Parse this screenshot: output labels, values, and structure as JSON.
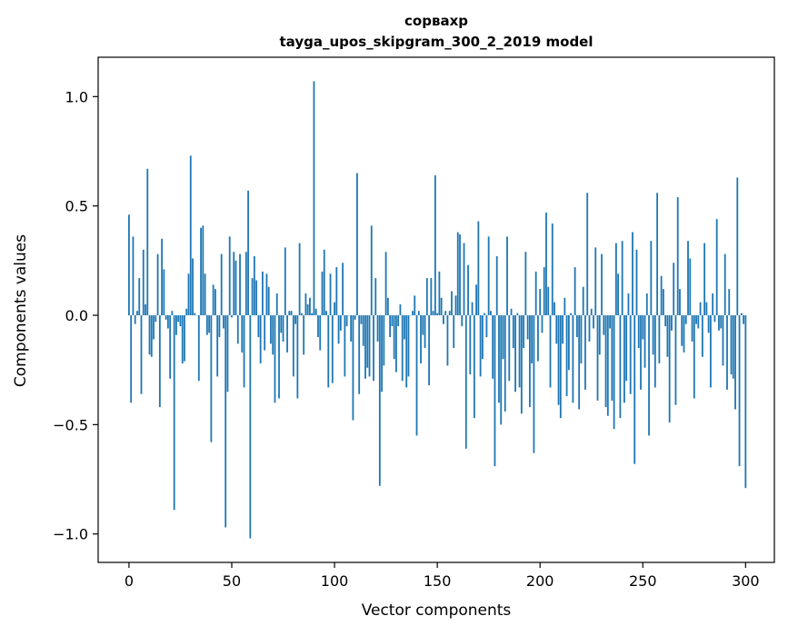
{
  "chart_data": {
    "type": "bar",
    "title": "сорвахр",
    "subtitle": "tayga_upos_skipgram_300_2_2019 model",
    "xlabel": "Vector components",
    "ylabel": "Components values",
    "xlim": [
      -15,
      314
    ],
    "ylim": [
      -1.13,
      1.18
    ],
    "x_ticks": [
      0,
      50,
      100,
      150,
      200,
      250,
      300
    ],
    "y_ticks": [
      -1.0,
      -0.5,
      0.0,
      0.5,
      1.0
    ],
    "y_tick_labels": [
      "−1.0",
      "−0.5",
      "0.0",
      "0.5",
      "1.0"
    ],
    "grid": false,
    "legend": "none",
    "bar_color": "#1f77b4",
    "values": [
      0.46,
      -0.4,
      0.36,
      -0.04,
      0.02,
      0.17,
      -0.36,
      0.3,
      0.05,
      0.67,
      -0.18,
      -0.19,
      -0.11,
      -0.03,
      0.28,
      -0.42,
      0.35,
      0.21,
      -0.02,
      -0.06,
      -0.29,
      0.02,
      -0.89,
      -0.09,
      -0.03,
      -0.05,
      -0.22,
      -0.21,
      0.03,
      0.19,
      0.73,
      0.26,
      0.01,
      0.0,
      -0.3,
      0.4,
      0.41,
      0.19,
      -0.09,
      -0.08,
      -0.58,
      0.14,
      0.12,
      -0.28,
      -0.1,
      0.28,
      -0.06,
      -0.97,
      -0.35,
      0.36,
      -0.01,
      0.29,
      0.25,
      -0.13,
      0.28,
      -0.17,
      -0.33,
      0.29,
      0.57,
      -1.02,
      0.17,
      0.27,
      0.16,
      -0.1,
      -0.22,
      0.2,
      -0.16,
      0.19,
      0.13,
      -0.13,
      -0.18,
      -0.4,
      0.1,
      -0.38,
      -0.08,
      -0.12,
      0.31,
      -0.17,
      0.02,
      0.02,
      -0.28,
      -0.04,
      -0.38,
      0.33,
      0.01,
      -0.18,
      0.1,
      0.05,
      0.08,
      0.01,
      1.07,
      0.03,
      -0.1,
      -0.16,
      0.2,
      0.3,
      0.02,
      -0.33,
      0.19,
      -0.31,
      0.06,
      0.22,
      -0.13,
      -0.07,
      0.24,
      -0.28,
      -0.05,
      0.0,
      -0.12,
      -0.48,
      -0.02,
      0.65,
      -0.36,
      -0.04,
      -0.14,
      -0.29,
      -0.24,
      -0.28,
      0.41,
      -0.3,
      0.17,
      -0.12,
      -0.78,
      -0.35,
      -0.23,
      0.29,
      0.08,
      -0.1,
      -0.05,
      -0.2,
      -0.26,
      -0.05,
      0.05,
      -0.3,
      -0.11,
      -0.33,
      -0.28,
      0.0,
      0.02,
      0.09,
      -0.55,
      0.02,
      -0.22,
      -0.09,
      -0.15,
      0.17,
      -0.32,
      0.17,
      0.02,
      0.64,
      0.01,
      0.2,
      0.08,
      -0.04,
      0.02,
      -0.23,
      0.02,
      0.11,
      -0.15,
      0.09,
      0.38,
      0.37,
      -0.05,
      0.33,
      -0.61,
      0.23,
      -0.27,
      0.06,
      -0.47,
      0.14,
      0.43,
      -0.28,
      -0.2,
      0.01,
      -0.1,
      0.36,
      0.02,
      -0.29,
      -0.69,
      0.27,
      -0.4,
      -0.5,
      -0.2,
      -0.44,
      0.36,
      -0.3,
      0.03,
      -0.15,
      -0.35,
      0.01,
      -0.33,
      -0.45,
      -0.15,
      0.29,
      -0.11,
      -0.42,
      -0.22,
      -0.63,
      0.2,
      -0.21,
      0.12,
      -0.08,
      0.22,
      0.47,
      0.13,
      -0.33,
      0.42,
      0.06,
      -0.13,
      -0.41,
      -0.47,
      -0.13,
      0.08,
      -0.37,
      -0.25,
      0.01,
      -0.4,
      0.22,
      -0.1,
      -0.43,
      -0.22,
      0.13,
      -0.34,
      0.56,
      -0.12,
      0.03,
      -0.06,
      0.31,
      -0.39,
      -0.18,
      0.28,
      -0.09,
      -0.42,
      -0.46,
      -0.06,
      -0.39,
      -0.52,
      0.33,
      0.19,
      -0.47,
      0.34,
      -0.4,
      -0.3,
      0.1,
      -0.36,
      0.38,
      -0.68,
      0.3,
      -0.15,
      -0.34,
      -0.11,
      -0.24,
      0.1,
      -0.55,
      0.34,
      -0.18,
      -0.33,
      0.56,
      -0.22,
      0.18,
      0.12,
      -0.05,
      -0.19,
      -0.49,
      -0.07,
      0.24,
      -0.41,
      0.54,
      0.12,
      -0.14,
      -0.17,
      -0.04,
      0.34,
      0.26,
      -0.12,
      -0.38,
      -0.04,
      -0.06,
      0.06,
      -0.19,
      0.33,
      0.06,
      -0.08,
      -0.33,
      0.1,
      -0.03,
      0.44,
      -0.07,
      -0.06,
      -0.23,
      0.28,
      -0.34,
      0.12,
      -0.27,
      -0.29,
      -0.43,
      0.63,
      -0.69,
      0.01,
      -0.04,
      -0.79
    ]
  }
}
